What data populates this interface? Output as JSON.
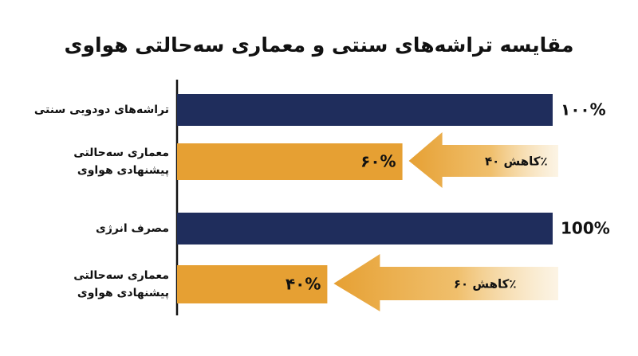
{
  "chart_data": {
    "type": "bar",
    "orientation": "horizontal",
    "title": "مقایسه تراشه‌های سنتی و معماری سه‌حالتی هواوی",
    "categories": [
      "تراشه‌های دودویی سنتی",
      "معماری سه‌حالتی\nپیشنهادی هواوی",
      "مصرف انرژی",
      "معماری سه‌حالتی\nپیشنهادی هواوی"
    ],
    "values": [
      100,
      60,
      100,
      40
    ],
    "value_labels": [
      "۱۰۰%",
      "۶۰%",
      "100%",
      "۴۰%"
    ],
    "colors": [
      "#1f2d5c",
      "#e6a033",
      "#1f2d5c",
      "#e6a033"
    ],
    "annotations": [
      "کاهش ۴۰٪",
      "کاهش ۶۰٪"
    ],
    "xlim": [
      0,
      100
    ]
  }
}
